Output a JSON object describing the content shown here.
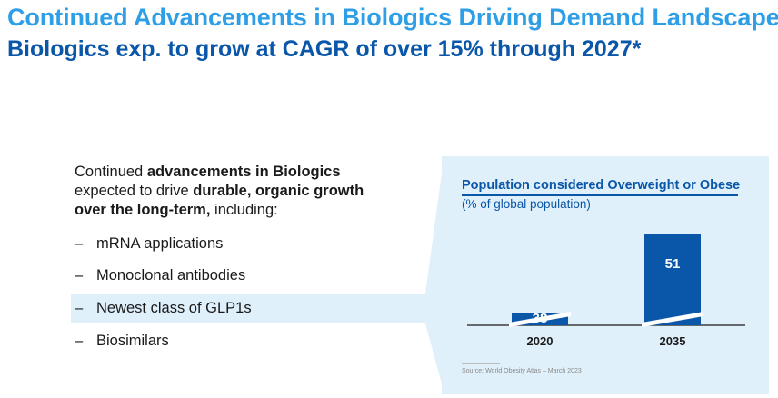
{
  "header": {
    "title": "Continued Advancements in Biologics Driving Demand Landscape",
    "subtitle": "Biologics exp. to grow at CAGR of over 15% through 2027*"
  },
  "intro": {
    "part1": "Continued ",
    "part2": "advancements in Biologics",
    "part3": "expected to drive ",
    "part4": "durable, organic growth",
    "part5": "over the long-term,",
    "part6": " including:"
  },
  "bullets": [
    {
      "dash": "–",
      "label": "mRNA applications"
    },
    {
      "dash": "–",
      "label": "Monoclonal antibodies"
    },
    {
      "dash": "–",
      "label": "Newest class of GLP1s"
    },
    {
      "dash": "–",
      "label": "Biosimilars"
    }
  ],
  "colors": {
    "title_light_blue": "#2e9fe6",
    "title_dark_blue": "#0a56a8",
    "bar": "#0a56a8",
    "panel": "#dff0fb"
  },
  "chart_data": {
    "type": "bar",
    "title": "Population considered Overweight or Obese",
    "subtitle": "(% of global population)",
    "categories": [
      "2020",
      "2035"
    ],
    "values": [
      38,
      51
    ],
    "axis_break": true,
    "grid": false,
    "source": "Source: World Obesity Atlas – March 2023"
  }
}
